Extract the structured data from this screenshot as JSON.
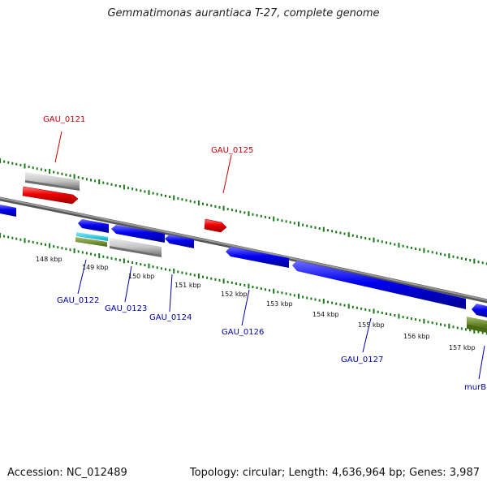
{
  "title": "Gemmatimonas aurantiaca T-27, complete genome",
  "footer": {
    "accession": "Accession: NC_012489",
    "topology": "Topology: circular; Length: 4,636,964 bp; Genes: 3,987"
  },
  "colors": {
    "backbone": "#808080",
    "tick": "#1a7a1a",
    "red_gene": "#ee0000",
    "blue_gene": "#0000ee",
    "grey_feature": "#c0c0c0",
    "cyan_feature": "#00c8d8",
    "olive_feature": "#6b8e23",
    "red_label": "#cc0000",
    "blue_label": "#0000aa"
  },
  "kbp_labels": [
    "148 kbp",
    "149 kbp",
    "150 kbp",
    "151 kbp",
    "152 kbp",
    "153 kbp",
    "154 kbp",
    "155 kbp",
    "156 kbp",
    "157 kbp"
  ],
  "gene_labels": {
    "forward": [
      "GAU_0121",
      "GAU_0125"
    ],
    "reverse": [
      "GAU_0122",
      "GAU_0123",
      "GAU_0124",
      "GAU_0126",
      "GAU_0127",
      "murB"
    ]
  }
}
